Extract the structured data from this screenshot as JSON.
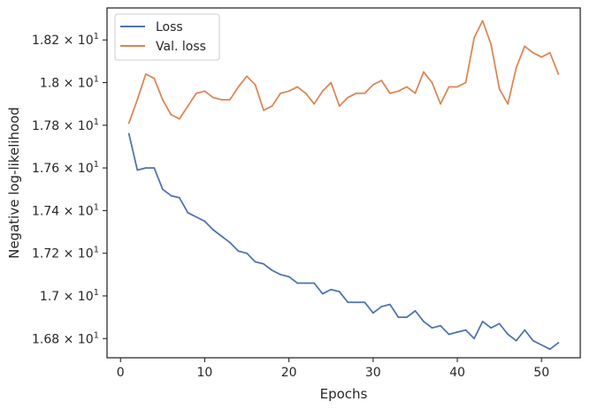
{
  "chart_data": {
    "type": "line",
    "xlabel": "Epochs",
    "ylabel": "Negative log-likelihood",
    "xlim": [
      -1.6,
      54.6
    ],
    "ylim": [
      16.71,
      18.35
    ],
    "x_ticks": [
      0,
      10,
      20,
      30,
      40,
      50
    ],
    "y_ticks": [
      {
        "value": 16.8,
        "mantissa": "1.68",
        "exp": "1"
      },
      {
        "value": 17.0,
        "mantissa": "1.7",
        "exp": "1"
      },
      {
        "value": 17.2,
        "mantissa": "1.72",
        "exp": "1"
      },
      {
        "value": 17.4,
        "mantissa": "1.74",
        "exp": "1"
      },
      {
        "value": 17.6,
        "mantissa": "1.76",
        "exp": "1"
      },
      {
        "value": 17.8,
        "mantissa": "1.78",
        "exp": "1"
      },
      {
        "value": 18.0,
        "mantissa": "1.8",
        "exp": "1"
      },
      {
        "value": 18.2,
        "mantissa": "1.82",
        "exp": "1"
      }
    ],
    "times_sign": "×",
    "tick_base": "10",
    "legend_position": "top-left",
    "grid": false,
    "x": [
      1,
      2,
      3,
      4,
      5,
      6,
      7,
      8,
      9,
      10,
      11,
      12,
      13,
      14,
      15,
      16,
      17,
      18,
      19,
      20,
      21,
      22,
      23,
      24,
      25,
      26,
      27,
      28,
      29,
      30,
      31,
      32,
      33,
      34,
      35,
      36,
      37,
      38,
      39,
      40,
      41,
      42,
      43,
      44,
      45,
      46,
      47,
      48,
      49,
      50,
      51,
      52
    ],
    "series": [
      {
        "name": "Loss",
        "color": "#4c72b0",
        "values": [
          17.76,
          17.59,
          17.6,
          17.6,
          17.5,
          17.47,
          17.46,
          17.39,
          17.37,
          17.35,
          17.31,
          17.28,
          17.25,
          17.21,
          17.2,
          17.16,
          17.15,
          17.12,
          17.1,
          17.09,
          17.06,
          17.06,
          17.06,
          17.01,
          17.03,
          17.02,
          16.97,
          16.97,
          16.97,
          16.92,
          16.95,
          16.96,
          16.9,
          16.9,
          16.93,
          16.88,
          16.85,
          16.86,
          16.82,
          16.83,
          16.84,
          16.8,
          16.88,
          16.85,
          16.87,
          16.82,
          16.79,
          16.84,
          16.79,
          16.77,
          16.75,
          16.78
        ]
      },
      {
        "name": "Val. loss",
        "color": "#dd8452",
        "values": [
          17.81,
          17.92,
          18.04,
          18.02,
          17.92,
          17.85,
          17.83,
          17.89,
          17.95,
          17.96,
          17.93,
          17.92,
          17.92,
          17.98,
          18.03,
          17.99,
          17.87,
          17.89,
          17.95,
          17.96,
          17.98,
          17.95,
          17.9,
          17.96,
          18.0,
          17.89,
          17.93,
          17.95,
          17.95,
          17.99,
          18.01,
          17.95,
          17.96,
          17.98,
          17.95,
          18.05,
          18.0,
          17.9,
          17.98,
          17.98,
          18.0,
          18.21,
          18.29,
          18.18,
          17.97,
          17.9,
          18.07,
          18.17,
          18.14,
          18.12,
          18.14,
          18.04
        ]
      }
    ]
  }
}
